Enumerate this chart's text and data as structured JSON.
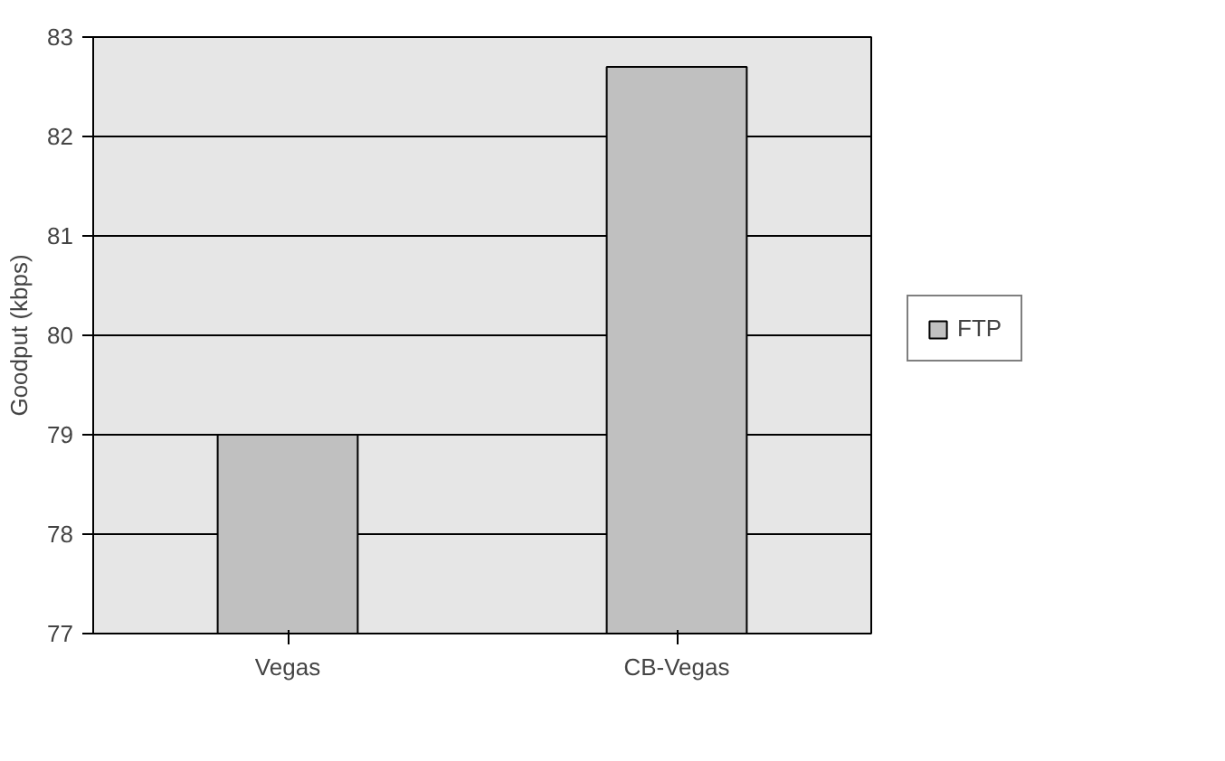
{
  "chart_data": {
    "type": "bar",
    "ylabel": "Goodput (kbps)",
    "categories": [
      "Vegas",
      "CB-Vegas"
    ],
    "series": [
      {
        "name": "FTP",
        "color": "#c0c0c0",
        "values": [
          79.0,
          82.7
        ]
      }
    ],
    "ylim": [
      77,
      83
    ],
    "yticks": [
      77,
      78,
      79,
      80,
      81,
      82,
      83
    ],
    "grid": "y",
    "legend": "right"
  }
}
